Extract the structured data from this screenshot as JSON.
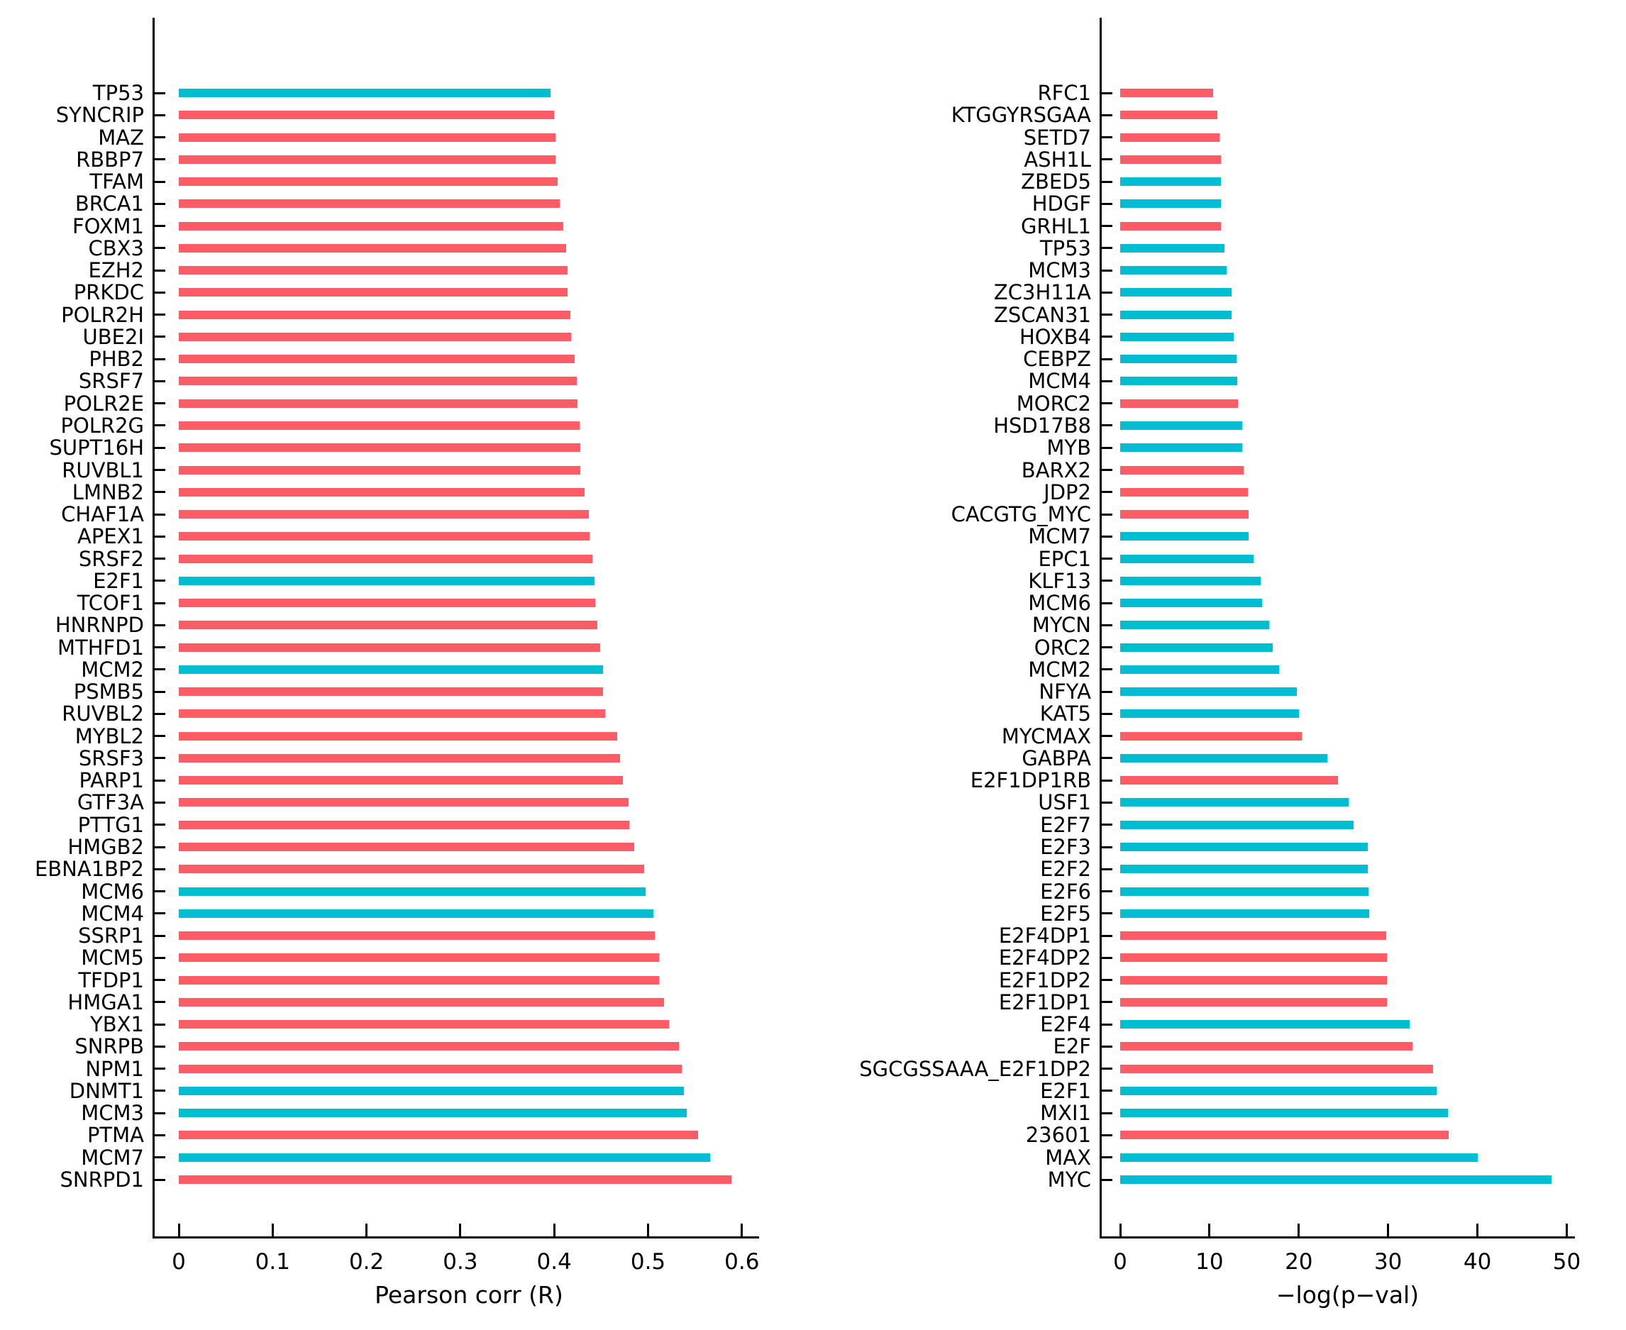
{
  "figure": {
    "background": "#ffffff",
    "colors": {
      "red": "#FB5C66",
      "cyan": "#00BDD1",
      "axis": "#000000"
    }
  },
  "chart_data": [
    {
      "type": "bar",
      "orientation": "horizontal",
      "title": "",
      "xlabel": "Pearson corr (R)",
      "ylabel": "",
      "xlim": [
        0,
        0.6
      ],
      "grid": false,
      "legend": "none",
      "xticks": [
        0,
        0.1,
        0.2,
        0.3,
        0.4,
        0.5,
        0.6
      ],
      "xtick_labels": [
        "0",
        "0.1",
        "0.2",
        "0.3",
        "0.4",
        "0.5",
        "0.6"
      ],
      "categories": [
        "TP53",
        "SYNCRIP",
        "MAZ",
        "RBBP7",
        "TFAM",
        "BRCA1",
        "FOXM1",
        "CBX3",
        "EZH2",
        "PRKDC",
        "POLR2H",
        "UBE2I",
        "PHB2",
        "SRSF7",
        "POLR2E",
        "POLR2G",
        "SUPT16H",
        "RUVBL1",
        "LMNB2",
        "CHAF1A",
        "APEX1",
        "SRSF2",
        "E2F1",
        "TCOF1",
        "HNRNPD",
        "MTHFD1",
        "MCM2",
        "PSMB5",
        "RUVBL2",
        "MYBL2",
        "SRSF3",
        "PARP1",
        "GTF3A",
        "PTTG1",
        "HMGB2",
        "EBNA1BP2",
        "MCM6",
        "MCM4",
        "SSRP1",
        "MCM5",
        "TFDP1",
        "HMGA1",
        "YBX1",
        "SNRPB",
        "NPM1",
        "DNMT1",
        "MCM3",
        "PTMA",
        "MCM7",
        "SNRPD1"
      ],
      "values": [
        0.396,
        0.4,
        0.401,
        0.401,
        0.404,
        0.406,
        0.41,
        0.413,
        0.414,
        0.414,
        0.417,
        0.418,
        0.422,
        0.424,
        0.425,
        0.427,
        0.428,
        0.428,
        0.432,
        0.437,
        0.438,
        0.441,
        0.443,
        0.444,
        0.446,
        0.449,
        0.452,
        0.452,
        0.454,
        0.467,
        0.47,
        0.473,
        0.479,
        0.48,
        0.485,
        0.496,
        0.497,
        0.506,
        0.507,
        0.512,
        0.512,
        0.517,
        0.522,
        0.533,
        0.536,
        0.538,
        0.541,
        0.553,
        0.566,
        0.589
      ],
      "colors": [
        "cyan",
        "red",
        "red",
        "red",
        "red",
        "red",
        "red",
        "red",
        "red",
        "red",
        "red",
        "red",
        "red",
        "red",
        "red",
        "red",
        "red",
        "red",
        "red",
        "red",
        "red",
        "red",
        "cyan",
        "red",
        "red",
        "red",
        "cyan",
        "red",
        "red",
        "red",
        "red",
        "red",
        "red",
        "red",
        "red",
        "red",
        "cyan",
        "cyan",
        "red",
        "red",
        "red",
        "red",
        "red",
        "red",
        "red",
        "cyan",
        "cyan",
        "red",
        "cyan",
        "red"
      ]
    },
    {
      "type": "bar",
      "orientation": "horizontal",
      "title": "",
      "xlabel": "−log(p−val)",
      "ylabel": "",
      "xlim": [
        0,
        50
      ],
      "grid": false,
      "legend": "none",
      "xticks": [
        0,
        10,
        20,
        30,
        40,
        50
      ],
      "xtick_labels": [
        "0",
        "10",
        "20",
        "30",
        "40",
        "50"
      ],
      "categories": [
        "RFC1",
        "KTGGYRSGAA",
        "SETD7",
        "ASH1L",
        "ZBED5",
        "HDGF",
        "GRHL1",
        "TP53",
        "MCM3",
        "ZC3H11A",
        "ZSCAN31",
        "HOXB4",
        "CEBPZ",
        "MCM4",
        "MORC2",
        "HSD17B8",
        "MYB",
        "BARX2",
        "JDP2",
        "CACGTG_MYC",
        "MCM7",
        "EPC1",
        "KLF13",
        "MCM6",
        "MYCN",
        "ORC2",
        "MCM2",
        "NFYA",
        "KAT5",
        "MYCMAX",
        "GABPA",
        "E2F1DP1RB",
        "USF1",
        "E2F7",
        "E2F3",
        "E2F2",
        "E2F6",
        "E2F5",
        "E2F4DP1",
        "E2F4DP2",
        "E2F1DP2",
        "E2F1DP1",
        "E2F4",
        "E2F",
        "SGCGSSAAA_E2F1DP2",
        "E2F1",
        "MXI1",
        "23601",
        "MAX",
        "MYC"
      ],
      "values": [
        10.4,
        10.9,
        11.1,
        11.3,
        11.3,
        11.3,
        11.3,
        11.7,
        11.9,
        12.5,
        12.5,
        12.7,
        13.0,
        13.1,
        13.2,
        13.7,
        13.7,
        13.8,
        14.3,
        14.4,
        14.4,
        14.9,
        15.7,
        15.9,
        16.7,
        17.1,
        17.8,
        19.8,
        20.0,
        20.3,
        23.2,
        24.4,
        25.6,
        26.1,
        27.7,
        27.7,
        27.8,
        27.9,
        29.8,
        29.9,
        29.9,
        29.9,
        32.4,
        32.7,
        35.0,
        35.4,
        36.7,
        36.8,
        40.0,
        48.3
      ],
      "colors": [
        "red",
        "red",
        "red",
        "red",
        "cyan",
        "cyan",
        "red",
        "cyan",
        "cyan",
        "cyan",
        "cyan",
        "cyan",
        "cyan",
        "cyan",
        "red",
        "cyan",
        "cyan",
        "red",
        "red",
        "red",
        "cyan",
        "cyan",
        "cyan",
        "cyan",
        "cyan",
        "cyan",
        "cyan",
        "cyan",
        "cyan",
        "red",
        "cyan",
        "red",
        "cyan",
        "cyan",
        "cyan",
        "cyan",
        "cyan",
        "cyan",
        "red",
        "red",
        "red",
        "red",
        "cyan",
        "red",
        "red",
        "cyan",
        "cyan",
        "red",
        "cyan",
        "cyan"
      ]
    }
  ]
}
